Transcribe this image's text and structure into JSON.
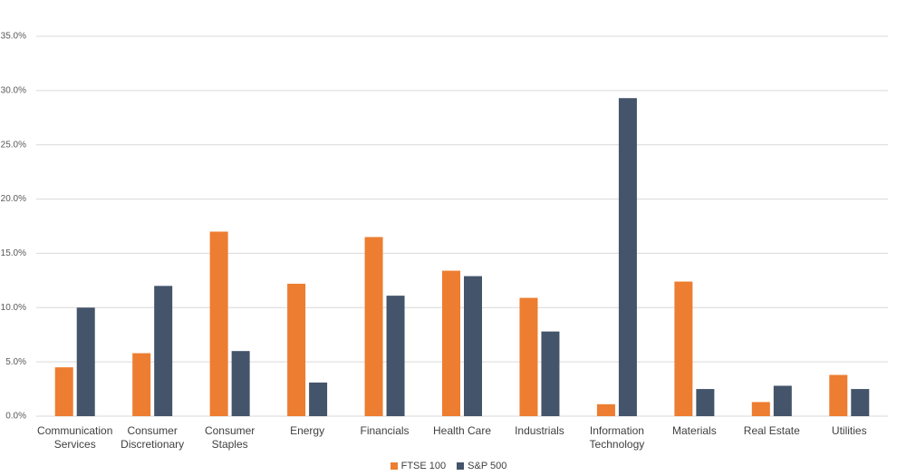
{
  "chart_data": {
    "type": "bar",
    "categories": [
      "Communication Services",
      "Consumer Discretionary",
      "Consumer Staples",
      "Energy",
      "Financials",
      "Health Care",
      "Industrials",
      "Information Technology",
      "Materials",
      "Real Estate",
      "Utilities"
    ],
    "series": [
      {
        "name": "FTSE 100",
        "color": "#ed7d31",
        "values": [
          4.5,
          5.8,
          17.0,
          12.2,
          16.5,
          13.4,
          10.9,
          1.1,
          12.4,
          1.3,
          3.8
        ]
      },
      {
        "name": "S&P 500",
        "color": "#44546a",
        "values": [
          10.0,
          12.0,
          6.0,
          3.1,
          11.1,
          12.9,
          7.8,
          29.3,
          2.5,
          2.8,
          2.5
        ]
      }
    ],
    "ylim": [
      0,
      35
    ],
    "yticks": [
      {
        "value": 0,
        "label": "0.0%"
      },
      {
        "value": 5,
        "label": "5.0%"
      },
      {
        "value": 10,
        "label": "10.0%"
      },
      {
        "value": 15,
        "label": "15.0%"
      },
      {
        "value": 20,
        "label": "20.0%"
      },
      {
        "value": 25,
        "label": "25.0%"
      },
      {
        "value": 30,
        "label": "30.0%"
      },
      {
        "value": 35,
        "label": "35.0%"
      }
    ],
    "grid": true,
    "legend": "bottom"
  }
}
